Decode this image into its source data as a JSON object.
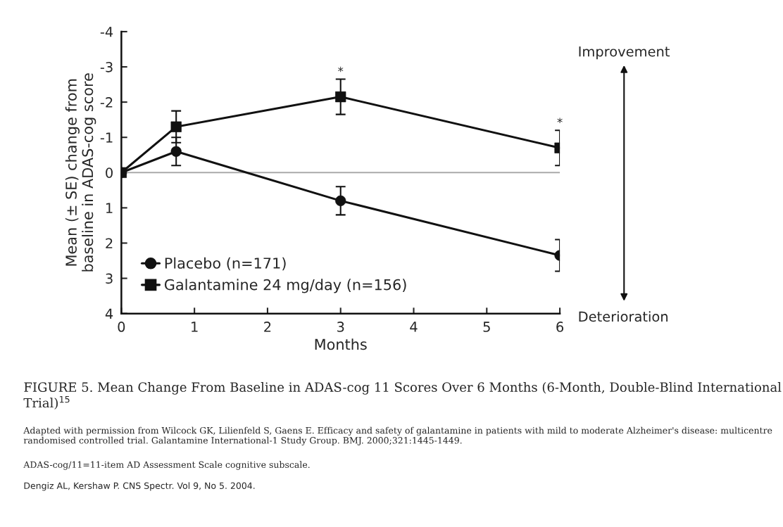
{
  "chart_data": {
    "type": "line",
    "xlabel": "Months",
    "ylabel": "Mean (± SE) change from\nbaseline in ADAS-cog score",
    "x": [
      0,
      0.75,
      3,
      6
    ],
    "series": [
      {
        "name": "Placebo (n=171)",
        "color": "#111111",
        "marker": "circle",
        "values": [
          0,
          -0.6,
          0.8,
          2.35
        ],
        "errors": [
          null,
          0.4,
          0.4,
          0.45
        ]
      },
      {
        "name": "Galantamine 24 mg/day (n=156)",
        "color": "#111111",
        "marker": "square",
        "values": [
          0,
          -1.3,
          -2.15,
          -0.7
        ],
        "errors": [
          null,
          0.45,
          0.5,
          0.5
        ]
      }
    ],
    "xlim": [
      0,
      6
    ],
    "ylim": [
      4,
      -4
    ],
    "xticks": [
      0,
      1,
      2,
      3,
      4,
      5,
      6
    ],
    "yticks": [
      -4,
      -3,
      -2,
      -1,
      0,
      1,
      2,
      3,
      4
    ],
    "ref_lines": [
      {
        "axis": "y",
        "value": 0,
        "color": "#aaaaaa"
      }
    ],
    "grid": false,
    "legend": "bottom left",
    "line_style": "solid",
    "annotations": [
      "*",
      "*",
      "Improvement",
      "Deterioration",
      "FIGURE 5. Mean Change From Baseline in ADAS-cog 11 Scores Over 6 Months (6-Month, Double-Blind International Trial)$^{15}$",
      "Adapted with permission from Wilcock GK, Lilienfeld S, Gaens E. Efficacy and safety of galantamine in patients with mild to moderate Alzheimer's disease: multicentre randomised controlled trial. Galantamine International-1 Study Group. BMJ. 2000;321:1445-1449.",
      "ADAS-cog/11=11-item AD Assessment Scale cognitive subscale.",
      "Dengiz AL, Kershaw P. CNS Spectr. Vol 9, No 5. 2004."
    ]
  }
}
